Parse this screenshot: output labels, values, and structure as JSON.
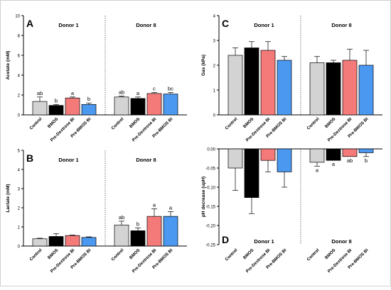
{
  "colors": {
    "Control": "#d3d3d3",
    "BMOS": "#000000",
    "Pre-Dextrose BI": "#f47a7a",
    "Pre-BMOS BI": "#4a98f0"
  },
  "chart_data": [
    {
      "id": "A",
      "type": "bar",
      "panel_label": "A",
      "ylabel": "Acetate (mM)",
      "ylim": [
        0,
        10
      ],
      "yticks": [
        "0",
        "2",
        "4",
        "6",
        "8",
        "10"
      ],
      "categories": [
        "Control",
        "BMOS",
        "Pre-Dextrose BI",
        "Pre-BMOS BI"
      ],
      "groups": [
        {
          "name": "Donor 1",
          "values": [
            1.35,
            0.95,
            1.7,
            1.05
          ],
          "errors": [
            0.45,
            0.1,
            0.1,
            0.15
          ],
          "letters": [
            "ab",
            "b",
            "a",
            "b"
          ]
        },
        {
          "name": "Donor 8",
          "values": [
            1.8,
            1.65,
            2.15,
            2.1
          ],
          "errors": [
            0.1,
            0.15,
            0.1,
            0.15
          ],
          "letters": [
            "ab",
            "a",
            "c",
            "bc"
          ]
        }
      ]
    },
    {
      "id": "B",
      "type": "bar",
      "panel_label": "B",
      "ylabel": "Lactate (mM)",
      "ylim": [
        0,
        5
      ],
      "yticks": [
        "0",
        "1",
        "2",
        "3",
        "4",
        "5"
      ],
      "categories": [
        "Control",
        "BMOS",
        "Pre-Dextrose BI",
        "Pre-BMOS BI"
      ],
      "groups": [
        {
          "name": "Donor 1",
          "values": [
            0.38,
            0.5,
            0.55,
            0.45
          ],
          "errors": [
            0.03,
            0.15,
            0.03,
            0.03
          ],
          "letters": [
            "",
            "",
            "",
            ""
          ]
        },
        {
          "name": "Donor 8",
          "values": [
            1.1,
            0.8,
            1.55,
            1.55
          ],
          "errors": [
            0.2,
            0.15,
            0.4,
            0.25
          ],
          "letters": [
            "ab",
            "b",
            "a",
            "a"
          ]
        }
      ]
    },
    {
      "id": "C",
      "type": "bar",
      "panel_label": "C",
      "ylabel": "Gas (kPa)",
      "ylim": [
        0,
        4
      ],
      "yticks": [
        "0",
        "1",
        "2",
        "3",
        "4"
      ],
      "categories": [
        "Control",
        "BMOS",
        "Pre-Dextrose BI",
        "Pre-BMOS BI"
      ],
      "groups": [
        {
          "name": "Donor 1",
          "values": [
            2.4,
            2.7,
            2.6,
            2.2
          ],
          "errors": [
            0.3,
            0.25,
            0.35,
            0.15
          ],
          "letters": [
            "",
            "",
            "",
            ""
          ]
        },
        {
          "name": "Donor 8",
          "values": [
            2.1,
            2.1,
            2.2,
            2.0
          ],
          "errors": [
            0.25,
            0.1,
            0.45,
            0.6
          ],
          "letters": [
            "",
            "",
            "",
            ""
          ]
        }
      ]
    },
    {
      "id": "D",
      "type": "bar",
      "panel_label": "D",
      "ylabel": "pH decrease (upH)",
      "ylim": [
        -0.25,
        0.0
      ],
      "yticks": [
        "0.00",
        "-0.05",
        "-0.10",
        "-0.15",
        "-0.20",
        "-0.25"
      ],
      "categories": [
        "Control",
        "BMOS",
        "Pre-Dextrose BI",
        "Pre-BMOS BI"
      ],
      "groups": [
        {
          "name": "Donor 1",
          "values": [
            -0.05,
            -0.127,
            -0.03,
            -0.06
          ],
          "errors": [
            0.058,
            0.042,
            0.03,
            0.04
          ],
          "letters": [
            "",
            "",
            "",
            ""
          ]
        },
        {
          "name": "Donor 8",
          "values": [
            -0.035,
            -0.03,
            -0.02,
            -0.01
          ],
          "errors": [
            0.01,
            0.0,
            0.0,
            0.01
          ],
          "letters": [
            "a",
            "a",
            "ab",
            "b"
          ]
        }
      ]
    }
  ]
}
